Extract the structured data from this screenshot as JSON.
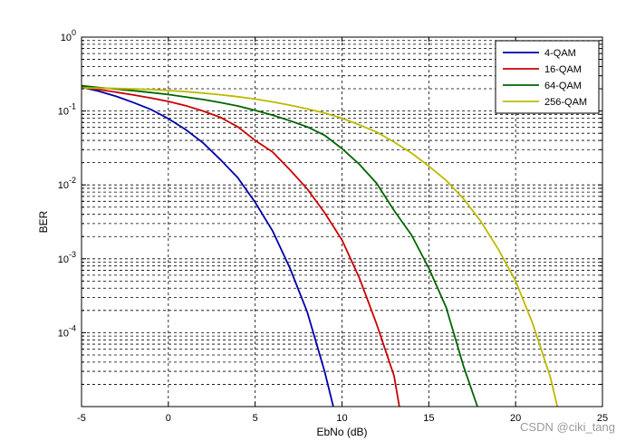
{
  "chart_data": {
    "type": "line",
    "title": "",
    "xlabel": "EbNo (dB)",
    "ylabel": "BER",
    "xscale": "linear",
    "yscale": "log",
    "xlim": [
      -5,
      25
    ],
    "ylim": [
      1e-05,
      1
    ],
    "grid": true,
    "grid_style": "dashed",
    "legend_position": "top-right",
    "x_ticks": [
      -5,
      0,
      5,
      10,
      15,
      20,
      25
    ],
    "x_tick_labels": [
      "-5",
      "0",
      "5",
      "10",
      "15",
      "20",
      "25"
    ],
    "y_ticks": [
      0.0001,
      0.001,
      0.01,
      0.1,
      1
    ],
    "y_tick_bases": [
      "10",
      "10",
      "10",
      "10",
      "10"
    ],
    "y_tick_exponents": [
      "-4",
      "-3",
      "-2",
      "-1",
      "0"
    ],
    "series": [
      {
        "name": "4-QAM",
        "color": "#0000aa",
        "x": [
          -5,
          -4,
          -3,
          -2,
          -1,
          0,
          1,
          2,
          3,
          4,
          5,
          6,
          7,
          8,
          9,
          9.5
        ],
        "y": [
          0.21,
          0.185,
          0.158,
          0.13,
          0.105,
          0.079,
          0.056,
          0.037,
          0.022,
          0.0125,
          0.0058,
          0.0024,
          0.00075,
          0.00019,
          3e-05,
          1e-05
        ]
      },
      {
        "name": "16-QAM",
        "color": "#cc0000",
        "x": [
          -5,
          -4,
          -3,
          -2,
          -1,
          0,
          1,
          2,
          3,
          4,
          5,
          6,
          7,
          8,
          9,
          10,
          11,
          12,
          13,
          13.3
        ],
        "y": [
          0.21,
          0.195,
          0.18,
          0.165,
          0.15,
          0.135,
          0.118,
          0.1,
          0.082,
          0.061,
          0.04,
          0.028,
          0.016,
          0.0088,
          0.0042,
          0.0018,
          0.00055,
          0.00013,
          2.6e-05,
          1e-05
        ]
      },
      {
        "name": "64-QAM",
        "color": "#006600",
        "x": [
          -5,
          -4,
          -3,
          -2,
          -1,
          0,
          1,
          2,
          3,
          4,
          5,
          6,
          7,
          8,
          9,
          10,
          11,
          12,
          13,
          14,
          15,
          16,
          17,
          17.8
        ],
        "y": [
          0.22,
          0.208,
          0.198,
          0.188,
          0.178,
          0.167,
          0.155,
          0.143,
          0.13,
          0.117,
          0.102,
          0.088,
          0.074,
          0.061,
          0.047,
          0.031,
          0.019,
          0.0105,
          0.0045,
          0.0021,
          0.00075,
          0.00022,
          3.5e-05,
          1e-05
        ]
      },
      {
        "name": "256-QAM",
        "color": "#bbbb00",
        "x": [
          -5,
          -4,
          -3,
          -2,
          -1,
          0,
          1,
          2,
          3,
          4,
          5,
          6,
          7,
          8,
          9,
          10,
          11,
          12,
          13,
          14,
          15,
          16,
          17,
          18,
          19,
          20,
          21,
          22,
          22.4
        ],
        "y": [
          0.205,
          0.204,
          0.202,
          0.199,
          0.196,
          0.19,
          0.183,
          0.175,
          0.166,
          0.156,
          0.145,
          0.133,
          0.12,
          0.107,
          0.094,
          0.08,
          0.065,
          0.052,
          0.038,
          0.027,
          0.018,
          0.0115,
          0.0065,
          0.0032,
          0.00135,
          0.0005,
          0.00013,
          2.5e-05,
          1e-05
        ]
      }
    ]
  },
  "watermark": "CSDN @ciki_tang"
}
